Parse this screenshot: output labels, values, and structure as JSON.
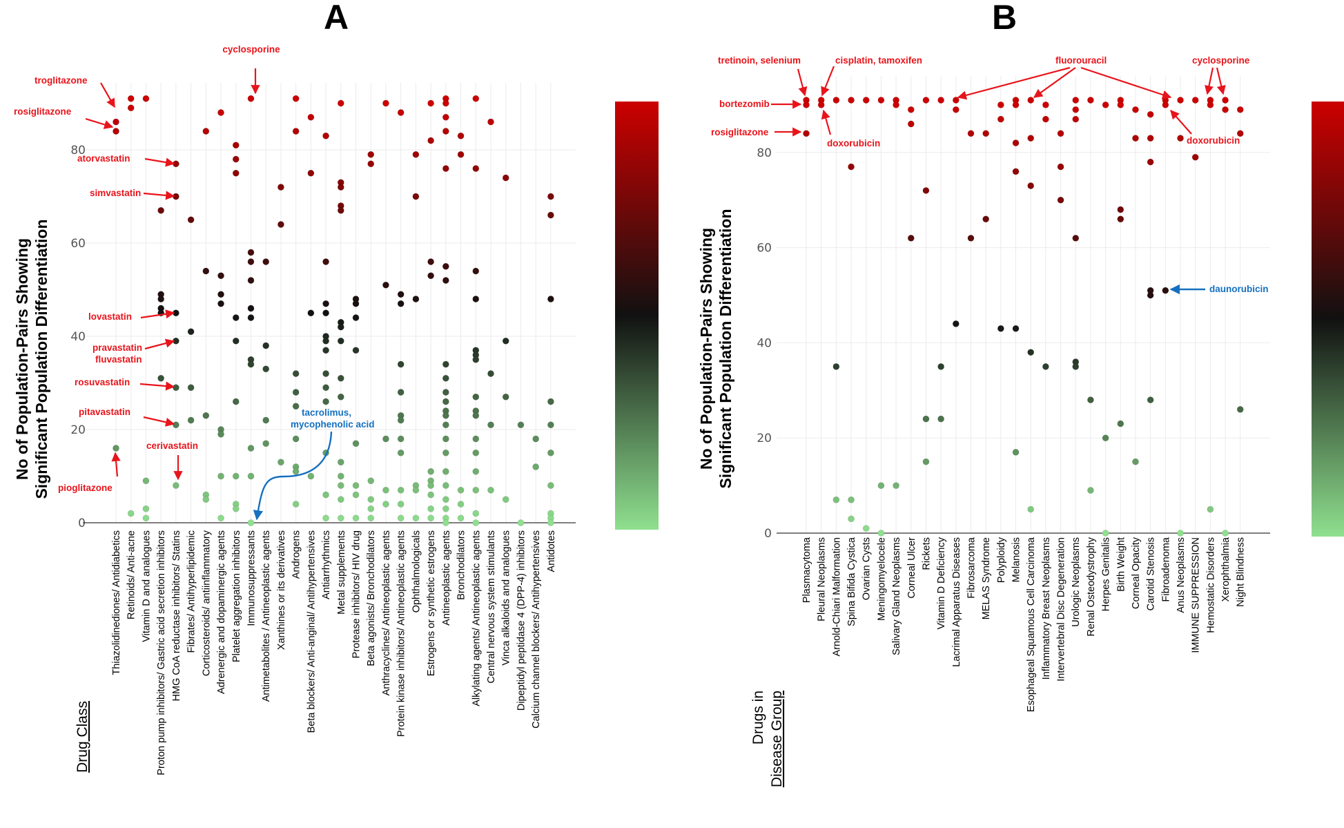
{
  "chart_data": [
    {
      "panel": "A",
      "type": "scatter",
      "ylabel_lines": [
        "No of Population-Pairs Showing",
        "Significant Population Differentiation"
      ],
      "xlabel": "Drug Class",
      "y_ticks": [
        "0",
        "20",
        "40",
        "60",
        "80"
      ],
      "ylim": [
        0,
        90
      ],
      "color_scale": {
        "low": "#8fe08f",
        "mid": "#111111",
        "high": "#cc0000",
        "range": [
          0,
          90
        ]
      },
      "categories": [
        "Thiazolidinediones/ Antidiabetics",
        "Retinoids/ Anti-acne",
        "Vitamin D and analogues",
        "Proton pump inhibitors/ Gastric acid secretion inhibitors",
        "HMG CoA reductase inhibitors/ Statins",
        "Fibrates/ Antihyperlipidemic",
        "Corticosteroids/ antiinflammatory",
        "Adrenergic and dopaminergic agents",
        "Platelet aggregation inhibitors",
        "Immunosuppressants",
        "Antimetabolites / Antineoplastic agents",
        "Xanthines or its derivatives",
        "Androgens",
        "Beta blockers/ Anti-anginal/ Antihypertensives",
        "Antiarrhythmics",
        "Metal supplements",
        "Protease inhibitors/ HIV drug",
        "Beta agonists/ Bronchodilators",
        "Anthracyclines/ Antineoplastic agents",
        "Protein kinase inhibitors/ Antineoplastic agents",
        "Ophthalmologicals",
        "Estrogens or synthetic estrogens",
        "Antineoplastic agents",
        "Bronchodilators",
        "Alkylating agents/ Antineoplastic agents",
        "Central nervous system stimulants",
        "Vinca alkaloids and analogues",
        "Dipeptidyl peptidase 4 (DPP-4) inhibitors",
        "Calcium channel blockers/ Antihypertensives",
        "Antidotes"
      ],
      "series": [
        {
          "category": "Thiazolidinediones/ Antidiabetics",
          "values": [
            84,
            86,
            16
          ]
        },
        {
          "category": "Retinoids/ Anti-acne",
          "values": [
            91,
            89,
            2
          ]
        },
        {
          "category": "Vitamin D and analogues",
          "values": [
            91,
            9,
            3,
            1
          ]
        },
        {
          "category": "Proton pump inhibitors/ Gastric acid secretion inhibitors",
          "values": [
            67,
            49,
            48,
            46,
            45,
            31
          ]
        },
        {
          "category": "HMG CoA reductase inhibitors/ Statins",
          "values": [
            77,
            70,
            45,
            39,
            29,
            21,
            8
          ]
        },
        {
          "category": "Fibrates/ Antihyperlipidemic",
          "values": [
            65,
            41,
            29,
            22
          ]
        },
        {
          "category": "Corticosteroids/ antiinflammatory",
          "values": [
            84,
            54,
            23,
            6,
            5
          ]
        },
        {
          "category": "Adrenergic and dopaminergic agents",
          "values": [
            88,
            53,
            49,
            47,
            20,
            19,
            10,
            1
          ]
        },
        {
          "category": "Platelet aggregation inhibitors",
          "values": [
            81,
            78,
            75,
            44,
            39,
            26,
            10,
            4,
            3
          ]
        },
        {
          "category": "Immunosuppressants",
          "values": [
            91,
            58,
            56,
            52,
            46,
            44,
            35,
            34,
            16,
            10,
            0
          ]
        },
        {
          "category": "Antimetabolites / Antineoplastic agents",
          "values": [
            56,
            38,
            33,
            22,
            17
          ]
        },
        {
          "category": "Xanthines or its derivatives",
          "values": [
            72,
            64,
            13
          ]
        },
        {
          "category": "Androgens",
          "values": [
            91,
            84,
            32,
            28,
            25,
            18,
            12,
            11,
            4
          ]
        },
        {
          "category": "Beta blockers/ Anti-anginal/ Antihypertensives",
          "values": [
            87,
            75,
            45,
            10
          ]
        },
        {
          "category": "Antiarrhythmics",
          "values": [
            83,
            56,
            47,
            45,
            40,
            39,
            37,
            32,
            29,
            26,
            15,
            6,
            1
          ]
        },
        {
          "category": "Metal supplements",
          "values": [
            90,
            73,
            72,
            68,
            67,
            43,
            42,
            39,
            31,
            27,
            13,
            10,
            8,
            5,
            1
          ]
        },
        {
          "category": "Protease inhibitors/ HIV drug",
          "values": [
            48,
            47,
            44,
            37,
            17,
            8,
            6,
            1
          ]
        },
        {
          "category": "Beta agonists/ Bronchodilators",
          "values": [
            79,
            77,
            9,
            5,
            3,
            1
          ]
        },
        {
          "category": "Anthracyclines/ Antineoplastic agents",
          "values": [
            90,
            51,
            18,
            7,
            4
          ]
        },
        {
          "category": "Protein kinase inhibitors/ Antineoplastic agents",
          "values": [
            88,
            49,
            47,
            34,
            28,
            23,
            22,
            18,
            15,
            7,
            4,
            1
          ]
        },
        {
          "category": "Ophthalmologicals",
          "values": [
            79,
            70,
            48,
            8,
            7,
            1
          ]
        },
        {
          "category": "Estrogens or synthetic estrogens",
          "values": [
            90,
            82,
            56,
            53,
            11,
            9,
            8,
            6,
            3,
            1
          ]
        },
        {
          "category": "Antineoplastic agents",
          "values": [
            91,
            90,
            87,
            84,
            76,
            55,
            52,
            34,
            31,
            28,
            26,
            24,
            23,
            21,
            18,
            15,
            11,
            8,
            5,
            3,
            1,
            0
          ]
        },
        {
          "category": "Bronchodilators",
          "values": [
            83,
            79,
            7,
            4,
            1
          ]
        },
        {
          "category": "Alkylating agents/ Antineoplastic agents",
          "values": [
            91,
            76,
            54,
            48,
            37,
            36,
            35,
            27,
            24,
            23,
            18,
            15,
            11,
            7,
            2,
            0
          ]
        },
        {
          "category": "Central nervous system stimulants",
          "values": [
            86,
            32,
            21,
            7
          ]
        },
        {
          "category": "Vinca alkaloids and analogues",
          "values": [
            74,
            39,
            27,
            5
          ]
        },
        {
          "category": "Dipeptidyl peptidase 4 (DPP-4) inhibitors",
          "values": [
            21,
            0
          ]
        },
        {
          "category": "Calcium channel blockers/ Antihypertensives",
          "values": [
            18,
            12
          ]
        },
        {
          "category": "Antidotes",
          "values": [
            70,
            66,
            48,
            26,
            21,
            15,
            8,
            2,
            1,
            0
          ]
        }
      ],
      "annotations": {
        "red": [
          "troglitazone",
          "rosiglitazone",
          "cyclosporine",
          "atorvastatin",
          "simvastatin",
          "lovastatin",
          "pravastatin",
          "fluvastatin",
          "rosuvastatin",
          "pitavastatin",
          "cerivastatin",
          "pioglitazone"
        ],
        "blue": [
          "tacrolimus,",
          "mycophenolic acid"
        ]
      }
    },
    {
      "panel": "B",
      "type": "scatter",
      "ylabel_lines": [
        "No of Population-Pairs Showing",
        "Significant Population Differentiation"
      ],
      "xlabel_lines": [
        "Drugs in",
        "Disease Group"
      ],
      "y_ticks": [
        "0",
        "20",
        "40",
        "60",
        "80"
      ],
      "ylim": [
        0,
        90
      ],
      "color_scale": {
        "low": "#8fe08f",
        "mid": "#111111",
        "high": "#cc0000",
        "range": [
          0,
          90
        ]
      },
      "categories": [
        "Plasmacytoma",
        "Pleural Neoplasms",
        "Arnold-Chiari Malformation",
        "Spina Bifida Cystica",
        "Ovarian Cysts",
        "Meningomyelocele",
        "Salivary Gland Neoplasms",
        "Corneal Ulcer",
        "Rickets",
        "Vitamin D Deficiency",
        "Lacrimal Apparatus Diseases",
        "Fibrosarcoma",
        "MELAS Syndrome",
        "Polyploidy",
        "Melanosis",
        "Esophageal Squamous Cell Carcinoma",
        "Inflammatory Breast Neoplasms",
        "Intervertebral Disc Degeneration",
        "Urologic Neoplasms",
        "Renal Osteodystrophy",
        "Herpes Genitalis",
        "Birth Weight",
        "Corneal Opacity",
        "Carotid Stenosis",
        "Fibroadenoma",
        "Anus Neoplasms",
        "IMMUNE SUPPRESSION",
        "Hemostatic Disorders",
        "Xerophthalmia",
        "Night Blindness"
      ],
      "series": [
        {
          "category": "Plasmacytoma",
          "values": [
            91,
            90,
            84
          ]
        },
        {
          "category": "Pleural Neoplasms",
          "values": [
            91,
            90
          ]
        },
        {
          "category": "Arnold-Chiari Malformation",
          "values": [
            91,
            35,
            7
          ]
        },
        {
          "category": "Spina Bifida Cystica",
          "values": [
            91,
            77,
            7,
            3
          ]
        },
        {
          "category": "Ovarian Cysts",
          "values": [
            91,
            1
          ]
        },
        {
          "category": "Meningomyelocele",
          "values": [
            91,
            10,
            0
          ]
        },
        {
          "category": "Salivary Gland Neoplasms",
          "values": [
            91,
            90,
            10
          ]
        },
        {
          "category": "Corneal Ulcer",
          "values": [
            89,
            86,
            62
          ]
        },
        {
          "category": "Rickets",
          "values": [
            91,
            72,
            24,
            15
          ]
        },
        {
          "category": "Vitamin D Deficiency",
          "values": [
            91,
            35,
            24
          ]
        },
        {
          "category": "Lacrimal Apparatus Diseases",
          "values": [
            91,
            89,
            44
          ]
        },
        {
          "category": "Fibrosarcoma",
          "values": [
            84,
            62
          ]
        },
        {
          "category": "MELAS Syndrome",
          "values": [
            84,
            66
          ]
        },
        {
          "category": "Polyploidy",
          "values": [
            90,
            87,
            43
          ]
        },
        {
          "category": "Melanosis",
          "values": [
            91,
            90,
            82,
            76,
            43,
            17
          ]
        },
        {
          "category": "Esophageal Squamous Cell Carcinoma",
          "values": [
            91,
            83,
            73,
            38,
            5
          ]
        },
        {
          "category": "Inflammatory Breast Neoplasms",
          "values": [
            90,
            87,
            35
          ]
        },
        {
          "category": "Intervertebral Disc Degeneration",
          "values": [
            84,
            77,
            70
          ]
        },
        {
          "category": "Urologic Neoplasms",
          "values": [
            91,
            89,
            87,
            62,
            36,
            35
          ]
        },
        {
          "category": "Renal Osteodystrophy",
          "values": [
            91,
            28,
            9
          ]
        },
        {
          "category": "Herpes Genitalis",
          "values": [
            90,
            20,
            0
          ]
        },
        {
          "category": "Birth Weight",
          "values": [
            91,
            90,
            68,
            66,
            23
          ]
        },
        {
          "category": "Corneal Opacity",
          "values": [
            89,
            83,
            15
          ]
        },
        {
          "category": "Carotid Stenosis",
          "values": [
            88,
            83,
            78,
            51,
            50,
            28
          ]
        },
        {
          "category": "Fibroadenoma",
          "values": [
            91,
            90,
            51
          ]
        },
        {
          "category": "Anus Neoplasms",
          "values": [
            91,
            83,
            0
          ]
        },
        {
          "category": "IMMUNE SUPPRESSION",
          "values": [
            91,
            79
          ]
        },
        {
          "category": "Hemostatic Disorders",
          "values": [
            91,
            90,
            5
          ]
        },
        {
          "category": "Xerophthalmia",
          "values": [
            91,
            89,
            0
          ]
        },
        {
          "category": "Night Blindness",
          "values": [
            89,
            84,
            26
          ]
        }
      ],
      "annotations": {
        "red": [
          "tretinoin, selenium",
          "cisplatin, tamoxifen",
          "fluorouracil",
          "cyclosporine",
          "bortezomib",
          "rosiglitazone",
          "doxorubicin",
          "doxorubicin"
        ],
        "blue": [
          "daunorubicin"
        ]
      }
    }
  ]
}
